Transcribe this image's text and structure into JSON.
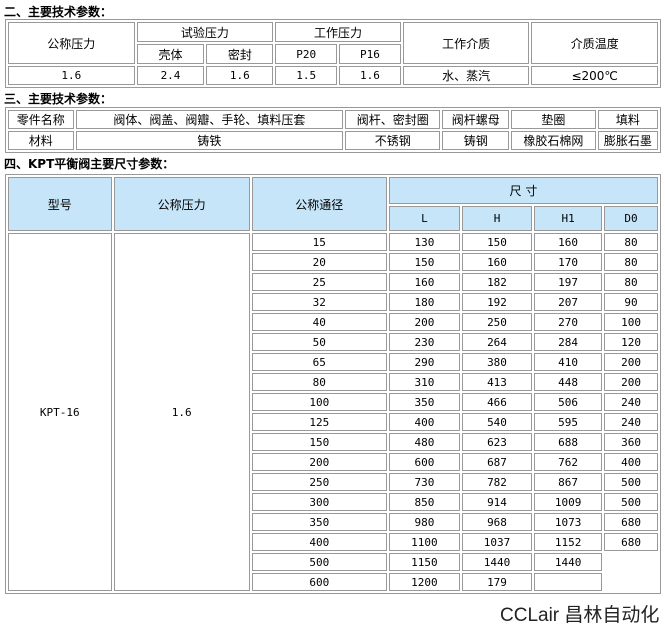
{
  "section1": {
    "heading": "二、主要技术参数：",
    "headers": {
      "nominal_pressure": "公称压力",
      "test_pressure": "试验压力",
      "shell": "壳体",
      "seal": "密封",
      "work_pressure": "工作压力",
      "p20": "P20",
      "p16": "P16",
      "medium": "工作介质",
      "temperature": "介质温度"
    },
    "values": [
      "1.6",
      "2.4",
      "1.6",
      "1.5",
      "1.6",
      "水、蒸汽",
      "≤200℃"
    ]
  },
  "section2": {
    "heading": "三、主要技术参数：",
    "parts": [
      "零件名称",
      "阀体、阀盖、阀瓣、手轮、填料压套",
      "阀杆、密封圈",
      "阀杆螺母",
      "垫圈",
      "填料"
    ],
    "materials": [
      "材料",
      "铸铁",
      "不锈钢",
      "铸钢",
      "橡胶石棉网",
      "膨胀石墨"
    ]
  },
  "section3": {
    "heading": "四、KPT平衡阀主要尺寸参数：",
    "headers": {
      "model": "型号",
      "pressure": "公称压力",
      "dn": "公称通径",
      "size": "尺 寸",
      "L": "L",
      "H": "H",
      "H1": "H1",
      "D0": "D0"
    },
    "model": "KPT-16",
    "pressure": "1.6",
    "rows": [
      [
        "15",
        "130",
        "150",
        "160",
        "80"
      ],
      [
        "20",
        "150",
        "160",
        "170",
        "80"
      ],
      [
        "25",
        "160",
        "182",
        "197",
        "80"
      ],
      [
        "32",
        "180",
        "192",
        "207",
        "90"
      ],
      [
        "40",
        "200",
        "250",
        "270",
        "100"
      ],
      [
        "50",
        "230",
        "264",
        "284",
        "120"
      ],
      [
        "65",
        "290",
        "380",
        "410",
        "200"
      ],
      [
        "80",
        "310",
        "413",
        "448",
        "200"
      ],
      [
        "100",
        "350",
        "466",
        "506",
        "240"
      ],
      [
        "125",
        "400",
        "540",
        "595",
        "240"
      ],
      [
        "150",
        "480",
        "623",
        "688",
        "360"
      ],
      [
        "200",
        "600",
        "687",
        "762",
        "400"
      ],
      [
        "250",
        "730",
        "782",
        "867",
        "500"
      ],
      [
        "300",
        "850",
        "914",
        "1009",
        "500"
      ],
      [
        "350",
        "980",
        "968",
        "1073",
        "680"
      ],
      [
        "400",
        "1100",
        "1037",
        "1152",
        "680"
      ],
      [
        "500",
        "1150",
        "1440",
        "1440",
        ""
      ],
      [
        "600",
        "1200",
        "179",
        "",
        ""
      ]
    ]
  },
  "watermark": "CCLair 昌林自动化"
}
